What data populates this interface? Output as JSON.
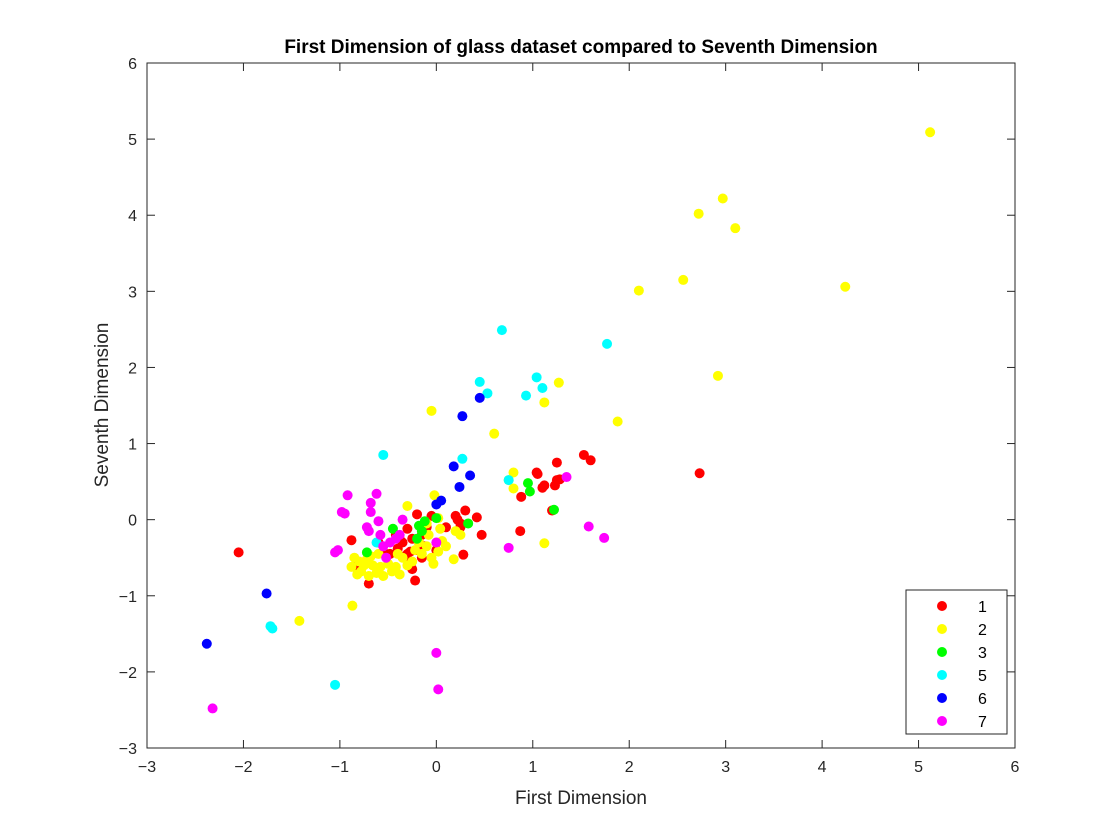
{
  "chart_data": {
    "type": "scatter",
    "title": "First Dimension of glass dataset compared to Seventh Dimension",
    "xlabel": "First Dimension",
    "ylabel": "Seventh Dimension",
    "xlim": [
      -3,
      6
    ],
    "ylim": [
      -3,
      6
    ],
    "xticks": [
      -3,
      -2,
      -1,
      0,
      1,
      2,
      3,
      4,
      5,
      6
    ],
    "yticks": [
      -3,
      -2,
      -1,
      0,
      1,
      2,
      3,
      4,
      5,
      6
    ],
    "grid": false,
    "legend_position": "bottom-right",
    "series": [
      {
        "name": "1",
        "color": "#ff0000",
        "points": [
          [
            -2.05,
            -0.43
          ],
          [
            -0.88,
            -0.27
          ],
          [
            -0.7,
            -0.84
          ],
          [
            -0.85,
            -0.62
          ],
          [
            -0.55,
            -0.42
          ],
          [
            -0.48,
            -0.45
          ],
          [
            -0.4,
            -0.38
          ],
          [
            -0.35,
            -0.3
          ],
          [
            -0.3,
            -0.45
          ],
          [
            -0.28,
            -0.55
          ],
          [
            -0.25,
            -0.65
          ],
          [
            -0.22,
            -0.8
          ],
          [
            -0.2,
            -0.4
          ],
          [
            -0.18,
            -0.3
          ],
          [
            -0.15,
            -0.2
          ],
          [
            -0.1,
            -0.1
          ],
          [
            -0.05,
            0.05
          ],
          [
            -0.2,
            0.07
          ],
          [
            0.1,
            -0.1
          ],
          [
            0.2,
            0.05
          ],
          [
            0.25,
            -0.05
          ],
          [
            0.3,
            0.12
          ],
          [
            0.42,
            0.03
          ],
          [
            0.47,
            -0.2
          ],
          [
            0.28,
            -0.46
          ],
          [
            -0.27,
            -0.42
          ],
          [
            -0.33,
            -0.48
          ],
          [
            -0.38,
            -0.25
          ],
          [
            -0.3,
            -0.12
          ],
          [
            -0.12,
            -0.35
          ],
          [
            0.0,
            -0.4
          ],
          [
            0.22,
            0.0
          ],
          [
            0.25,
            -0.1
          ],
          [
            0.87,
            -0.15
          ],
          [
            0.88,
            0.3
          ],
          [
            1.04,
            0.62
          ],
          [
            1.05,
            0.6
          ],
          [
            1.1,
            0.42
          ],
          [
            1.12,
            0.45
          ],
          [
            1.2,
            0.12
          ],
          [
            1.23,
            0.45
          ],
          [
            1.25,
            0.52
          ],
          [
            1.25,
            0.75
          ],
          [
            1.28,
            0.53
          ],
          [
            1.53,
            0.85
          ],
          [
            1.6,
            0.78
          ],
          [
            2.73,
            0.61
          ],
          [
            -0.25,
            -0.25
          ],
          [
            -0.15,
            -0.5
          ],
          [
            -0.42,
            -0.2
          ],
          [
            -0.6,
            -0.3
          ]
        ]
      },
      {
        "name": "2",
        "color": "#ffff00",
        "points": [
          [
            -0.87,
            -1.13
          ],
          [
            -1.42,
            -1.33
          ],
          [
            -0.88,
            -0.62
          ],
          [
            -0.85,
            -0.5
          ],
          [
            -0.82,
            -0.72
          ],
          [
            -0.8,
            -0.55
          ],
          [
            -0.78,
            -0.68
          ],
          [
            -0.75,
            -0.6
          ],
          [
            -0.72,
            -0.52
          ],
          [
            -0.7,
            -0.74
          ],
          [
            -0.66,
            -0.6
          ],
          [
            -0.62,
            -0.7
          ],
          [
            -0.58,
            -0.62
          ],
          [
            -0.55,
            -0.74
          ],
          [
            -0.5,
            -0.58
          ],
          [
            -0.46,
            -0.68
          ],
          [
            -0.42,
            -0.62
          ],
          [
            -0.38,
            -0.72
          ],
          [
            -0.35,
            -0.5
          ],
          [
            -0.3,
            -0.6
          ],
          [
            -0.25,
            -0.55
          ],
          [
            -0.22,
            -0.4
          ],
          [
            -0.18,
            -0.3
          ],
          [
            -0.15,
            -0.45
          ],
          [
            -0.1,
            -0.35
          ],
          [
            -0.08,
            -0.2
          ],
          [
            -0.05,
            -0.5
          ],
          [
            -0.03,
            -0.58
          ],
          [
            0.0,
            -0.3
          ],
          [
            0.02,
            -0.42
          ],
          [
            0.04,
            -0.12
          ],
          [
            0.06,
            -0.28
          ],
          [
            0.1,
            -0.35
          ],
          [
            0.18,
            -0.52
          ],
          [
            0.2,
            -0.15
          ],
          [
            0.25,
            -0.2
          ],
          [
            -0.02,
            0.32
          ],
          [
            -0.3,
            0.18
          ],
          [
            -0.1,
            -0.05
          ],
          [
            0.02,
            0.02
          ],
          [
            -0.6,
            -0.45
          ],
          [
            -0.68,
            -0.48
          ],
          [
            -0.4,
            -0.45
          ],
          [
            -0.05,
            1.43
          ],
          [
            0.6,
            1.13
          ],
          [
            0.75,
            0.52
          ],
          [
            0.8,
            0.62
          ],
          [
            0.8,
            0.41
          ],
          [
            1.12,
            -0.31
          ],
          [
            1.12,
            1.54
          ],
          [
            1.27,
            1.8
          ],
          [
            1.88,
            1.29
          ],
          [
            2.1,
            3.01
          ],
          [
            2.56,
            3.15
          ],
          [
            2.72,
            4.02
          ],
          [
            2.92,
            1.89
          ],
          [
            2.97,
            4.22
          ],
          [
            3.1,
            3.83
          ],
          [
            4.24,
            3.06
          ],
          [
            5.12,
            5.09
          ]
        ]
      },
      {
        "name": "3",
        "color": "#00ff00",
        "points": [
          [
            -0.72,
            -0.43
          ],
          [
            -0.45,
            -0.12
          ],
          [
            -0.2,
            -0.25
          ],
          [
            -0.18,
            -0.08
          ],
          [
            -0.15,
            -0.15
          ],
          [
            -0.12,
            -0.02
          ],
          [
            0.0,
            0.02
          ],
          [
            0.33,
            -0.05
          ],
          [
            0.95,
            0.48
          ],
          [
            0.97,
            0.37
          ],
          [
            1.22,
            0.13
          ]
        ]
      },
      {
        "name": "5",
        "color": "#00ffff",
        "points": [
          [
            -1.72,
            -1.4
          ],
          [
            -1.7,
            -1.43
          ],
          [
            -1.05,
            -2.17
          ],
          [
            -0.55,
            0.85
          ],
          [
            -0.62,
            -0.3
          ],
          [
            0.27,
            0.8
          ],
          [
            0.45,
            1.81
          ],
          [
            0.53,
            1.66
          ],
          [
            0.68,
            2.49
          ],
          [
            0.75,
            0.52
          ],
          [
            0.93,
            1.63
          ],
          [
            1.04,
            1.87
          ],
          [
            1.1,
            1.73
          ],
          [
            1.77,
            2.31
          ]
        ]
      },
      {
        "name": "6",
        "color": "#0000ff",
        "points": [
          [
            -2.38,
            -1.63
          ],
          [
            -1.76,
            -0.97
          ],
          [
            0.0,
            0.2
          ],
          [
            0.05,
            0.25
          ],
          [
            0.18,
            0.7
          ],
          [
            0.24,
            0.43
          ],
          [
            0.27,
            1.36
          ],
          [
            0.35,
            0.58
          ],
          [
            0.45,
            1.6
          ]
        ]
      },
      {
        "name": "7",
        "color": "#ff00ff",
        "points": [
          [
            -2.32,
            -2.48
          ],
          [
            -1.05,
            -0.43
          ],
          [
            -1.02,
            -0.4
          ],
          [
            -0.98,
            0.1
          ],
          [
            -0.95,
            0.08
          ],
          [
            -0.92,
            0.32
          ],
          [
            -0.72,
            -0.1
          ],
          [
            -0.7,
            -0.15
          ],
          [
            -0.68,
            0.1
          ],
          [
            -0.68,
            0.22
          ],
          [
            -0.62,
            0.34
          ],
          [
            -0.6,
            -0.02
          ],
          [
            -0.58,
            -0.2
          ],
          [
            -0.55,
            -0.35
          ],
          [
            -0.52,
            -0.5
          ],
          [
            -0.48,
            -0.3
          ],
          [
            -0.42,
            -0.25
          ],
          [
            -0.38,
            -0.2
          ],
          [
            -0.35,
            0.0
          ],
          [
            0.0,
            -1.75
          ],
          [
            0.02,
            -2.23
          ],
          [
            0.0,
            -0.3
          ],
          [
            0.75,
            -0.37
          ],
          [
            1.35,
            0.56
          ],
          [
            1.58,
            -0.09
          ],
          [
            1.74,
            -0.24
          ]
        ]
      }
    ]
  }
}
